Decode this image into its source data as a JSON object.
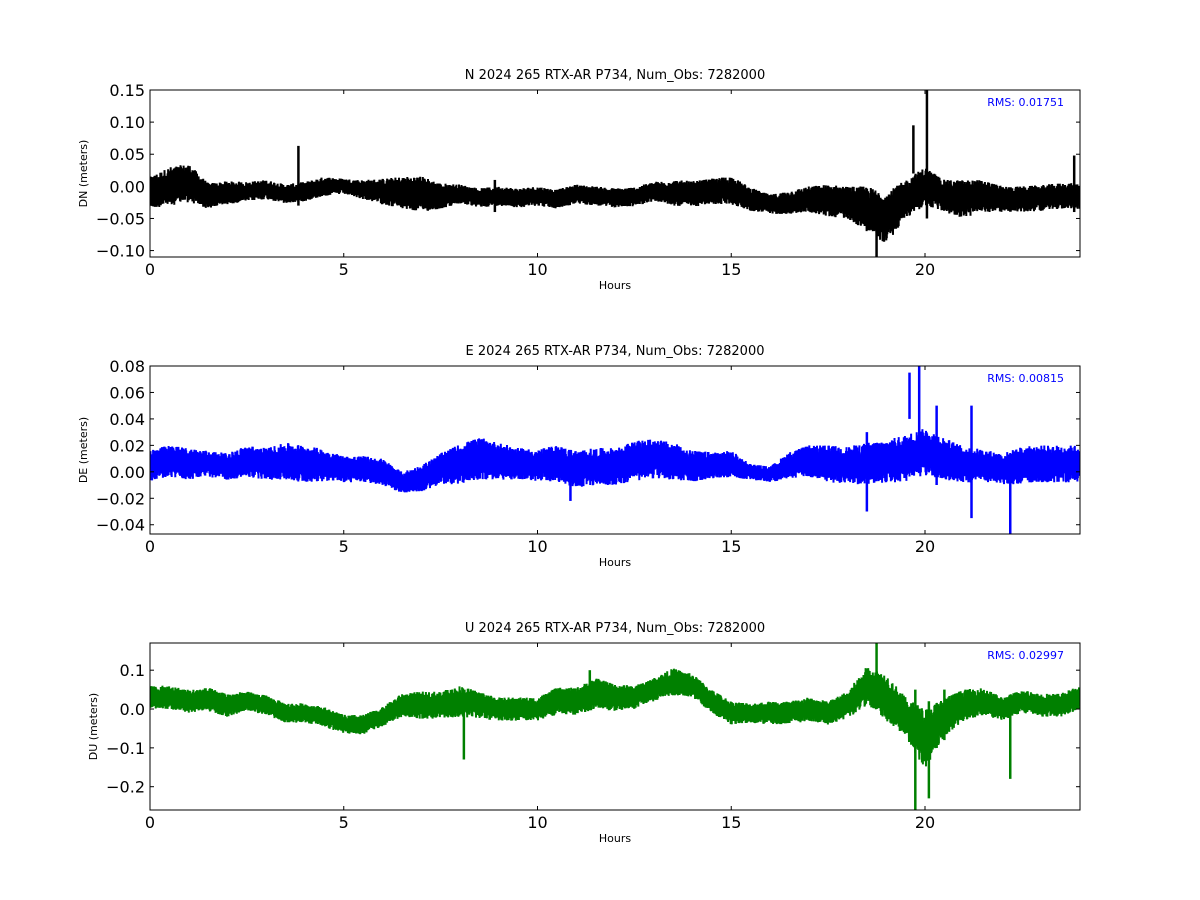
{
  "chart_data": [
    {
      "type": "line",
      "title": "N 2024 265 RTX-AR  P734, Num_Obs: 7282000",
      "xlabel": "Hours",
      "ylabel": "DN (meters)",
      "xlim": [
        0,
        24
      ],
      "ylim": [
        -0.11,
        0.15
      ],
      "xticks": [
        0,
        5,
        10,
        15,
        20
      ],
      "xtick_labels": [
        "0",
        "5",
        "10",
        "15",
        "20"
      ],
      "yticks": [
        -0.1,
        -0.05,
        0.0,
        0.05,
        0.1,
        0.15
      ],
      "ytick_labels": [
        "−0.10",
        "−0.05",
        "0.00",
        "0.05",
        "0.10",
        "0.15"
      ],
      "grid": false,
      "annotation": "RMS:  0.01751",
      "annotation_color": "#0000ff",
      "series": [
        {
          "color": "#000000",
          "x": [
            0,
            0.5,
            1,
            1.5,
            2,
            2.5,
            3,
            3.5,
            4,
            4.5,
            5,
            5.5,
            6,
            6.5,
            7,
            7.5,
            8,
            8.5,
            9,
            9.5,
            10,
            10.5,
            11,
            11.5,
            12,
            12.5,
            13,
            13.5,
            14,
            14.5,
            15,
            15.5,
            16,
            16.5,
            17,
            17.5,
            18,
            18.5,
            19,
            19.5,
            20,
            20.5,
            21,
            21.5,
            22,
            22.5,
            23,
            23.5,
            24
          ],
          "y": [
            -0.01,
            0.0,
            0.005,
            -0.015,
            -0.01,
            -0.008,
            -0.005,
            -0.012,
            -0.008,
            0.0,
            0.0,
            -0.005,
            -0.008,
            -0.01,
            -0.012,
            -0.015,
            -0.012,
            -0.018,
            -0.015,
            -0.018,
            -0.015,
            -0.02,
            -0.012,
            -0.015,
            -0.018,
            -0.016,
            -0.008,
            -0.01,
            -0.012,
            -0.008,
            -0.006,
            -0.02,
            -0.028,
            -0.025,
            -0.02,
            -0.022,
            -0.025,
            -0.035,
            -0.05,
            -0.02,
            0.0,
            -0.015,
            -0.02,
            -0.015,
            -0.02,
            -0.02,
            -0.018,
            -0.015,
            -0.015
          ],
          "band": [
            0.025,
            0.03,
            0.03,
            0.02,
            0.018,
            0.015,
            0.015,
            0.015,
            0.015,
            0.015,
            0.012,
            0.015,
            0.02,
            0.025,
            0.028,
            0.02,
            0.015,
            0.015,
            0.015,
            0.015,
            0.015,
            0.015,
            0.015,
            0.015,
            0.015,
            0.015,
            0.015,
            0.02,
            0.02,
            0.02,
            0.022,
            0.018,
            0.015,
            0.018,
            0.02,
            0.025,
            0.025,
            0.035,
            0.04,
            0.03,
            0.03,
            0.025,
            0.03,
            0.025,
            0.02,
            0.02,
            0.02,
            0.02,
            0.02
          ],
          "spikes": [
            [
              3.83,
              -0.03,
              0.063
            ],
            [
              18.75,
              -0.11,
              -0.02
            ],
            [
              19.7,
              0.02,
              0.095
            ],
            [
              20.05,
              -0.05,
              0.15
            ],
            [
              23.85,
              -0.04,
              0.048
            ],
            [
              8.9,
              -0.04,
              0.01
            ]
          ]
        }
      ]
    },
    {
      "type": "line",
      "title": "E 2024 265 RTX-AR  P734, Num_Obs: 7282000",
      "xlabel": "Hours",
      "ylabel": "DE (meters)",
      "xlim": [
        0,
        24
      ],
      "ylim": [
        -0.047,
        0.08
      ],
      "xticks": [
        0,
        5,
        10,
        15,
        20
      ],
      "xtick_labels": [
        "0",
        "5",
        "10",
        "15",
        "20"
      ],
      "yticks": [
        -0.04,
        -0.02,
        0.0,
        0.02,
        0.04,
        0.06,
        0.08
      ],
      "ytick_labels": [
        "−0.04",
        "−0.02",
        "0.00",
        "0.02",
        "0.04",
        "0.06",
        "0.08"
      ],
      "grid": false,
      "annotation": "RMS:  0.00815",
      "annotation_color": "#0000ff",
      "series": [
        {
          "color": "#0000ff",
          "x": [
            0,
            0.5,
            1,
            1.5,
            2,
            2.5,
            3,
            3.5,
            4,
            4.5,
            5,
            5.5,
            6,
            6.5,
            7,
            7.5,
            8,
            8.5,
            9,
            9.5,
            10,
            10.5,
            11,
            11.5,
            12,
            12.5,
            13,
            13.5,
            14,
            14.5,
            15,
            15.5,
            16,
            16.5,
            17,
            17.5,
            18,
            18.5,
            19,
            19.5,
            20,
            20.5,
            21,
            21.5,
            22,
            22.5,
            23,
            23.5,
            24
          ],
          "y": [
            0.005,
            0.008,
            0.006,
            0.006,
            0.004,
            0.008,
            0.006,
            0.008,
            0.006,
            0.005,
            0.002,
            0.002,
            0.0,
            -0.008,
            -0.005,
            0.002,
            0.006,
            0.01,
            0.008,
            0.006,
            0.005,
            0.006,
            0.002,
            0.004,
            0.004,
            0.008,
            0.01,
            0.008,
            0.004,
            0.005,
            0.006,
            0.0,
            -0.002,
            0.005,
            0.008,
            0.006,
            0.005,
            0.006,
            0.008,
            0.01,
            0.015,
            0.01,
            0.005,
            0.005,
            0.002,
            0.005,
            0.006,
            0.006,
            0.006
          ],
          "band": [
            0.012,
            0.012,
            0.012,
            0.01,
            0.01,
            0.012,
            0.012,
            0.014,
            0.014,
            0.012,
            0.01,
            0.01,
            0.01,
            0.008,
            0.01,
            0.012,
            0.015,
            0.016,
            0.014,
            0.012,
            0.012,
            0.014,
            0.014,
            0.014,
            0.014,
            0.015,
            0.015,
            0.014,
            0.012,
            0.01,
            0.01,
            0.006,
            0.006,
            0.01,
            0.012,
            0.014,
            0.014,
            0.016,
            0.016,
            0.018,
            0.018,
            0.016,
            0.014,
            0.012,
            0.012,
            0.014,
            0.014,
            0.014,
            0.014
          ],
          "spikes": [
            [
              19.6,
              0.04,
              0.075
            ],
            [
              19.85,
              0.02,
              0.08
            ],
            [
              20.3,
              -0.01,
              0.05
            ],
            [
              22.2,
              -0.047,
              0.0
            ],
            [
              18.5,
              -0.03,
              0.03
            ],
            [
              21.2,
              -0.035,
              0.05
            ],
            [
              10.85,
              -0.022,
              0.0
            ]
          ]
        }
      ]
    },
    {
      "type": "line",
      "title": "U 2024 265 RTX-AR  P734, Num_Obs: 7282000",
      "xlabel": "Hours",
      "ylabel": "DU (meters)",
      "xlim": [
        0,
        24
      ],
      "ylim": [
        -0.26,
        0.17
      ],
      "xticks": [
        0,
        5,
        10,
        15,
        20
      ],
      "xtick_labels": [
        "0",
        "5",
        "10",
        "15",
        "20"
      ],
      "yticks": [
        -0.2,
        -0.1,
        0.0,
        0.1
      ],
      "ytick_labels": [
        "−0.2",
        "−0.1",
        "0.0",
        "0.1"
      ],
      "grid": false,
      "annotation": "RMS:  0.02997",
      "annotation_color": "#0000ff",
      "series": [
        {
          "color": "#008000",
          "x": [
            0,
            0.5,
            1,
            1.5,
            2,
            2.5,
            3,
            3.5,
            4,
            4.5,
            5,
            5.5,
            6,
            6.5,
            7,
            7.5,
            8,
            8.5,
            9,
            9.5,
            10,
            10.5,
            11,
            11.5,
            12,
            12.5,
            13,
            13.5,
            14,
            14.5,
            15,
            15.5,
            16,
            16.5,
            17,
            17.5,
            18,
            18.5,
            19,
            19.5,
            20,
            20.5,
            21,
            21.5,
            22,
            22.5,
            23,
            23.5,
            24
          ],
          "y": [
            0.03,
            0.03,
            0.02,
            0.025,
            0.01,
            0.02,
            0.01,
            -0.01,
            -0.01,
            -0.02,
            -0.04,
            -0.04,
            -0.02,
            0.01,
            0.01,
            0.01,
            0.02,
            0.01,
            0.0,
            0.0,
            0.0,
            0.02,
            0.02,
            0.04,
            0.03,
            0.03,
            0.05,
            0.07,
            0.06,
            0.02,
            -0.01,
            -0.01,
            -0.01,
            -0.01,
            0.0,
            -0.01,
            0.01,
            0.06,
            0.03,
            -0.02,
            -0.08,
            -0.02,
            0.01,
            0.02,
            0.0,
            0.02,
            0.01,
            0.01,
            0.03
          ],
          "band": [
            0.03,
            0.03,
            0.03,
            0.03,
            0.03,
            0.025,
            0.025,
            0.025,
            0.025,
            0.025,
            0.025,
            0.025,
            0.025,
            0.03,
            0.035,
            0.035,
            0.04,
            0.035,
            0.03,
            0.03,
            0.03,
            0.035,
            0.035,
            0.04,
            0.035,
            0.03,
            0.03,
            0.035,
            0.03,
            0.03,
            0.03,
            0.025,
            0.03,
            0.03,
            0.03,
            0.03,
            0.035,
            0.05,
            0.06,
            0.05,
            0.08,
            0.05,
            0.04,
            0.035,
            0.03,
            0.03,
            0.03,
            0.03,
            0.03
          ],
          "spikes": [
            [
              19.75,
              -0.26,
              0.05
            ],
            [
              20.1,
              -0.23,
              0.02
            ],
            [
              22.2,
              -0.18,
              0.02
            ],
            [
              8.1,
              -0.13,
              0.0
            ],
            [
              18.75,
              0.0,
              0.17
            ],
            [
              20.5,
              -0.08,
              0.05
            ],
            [
              11.35,
              0.0,
              0.1
            ]
          ]
        }
      ]
    }
  ]
}
